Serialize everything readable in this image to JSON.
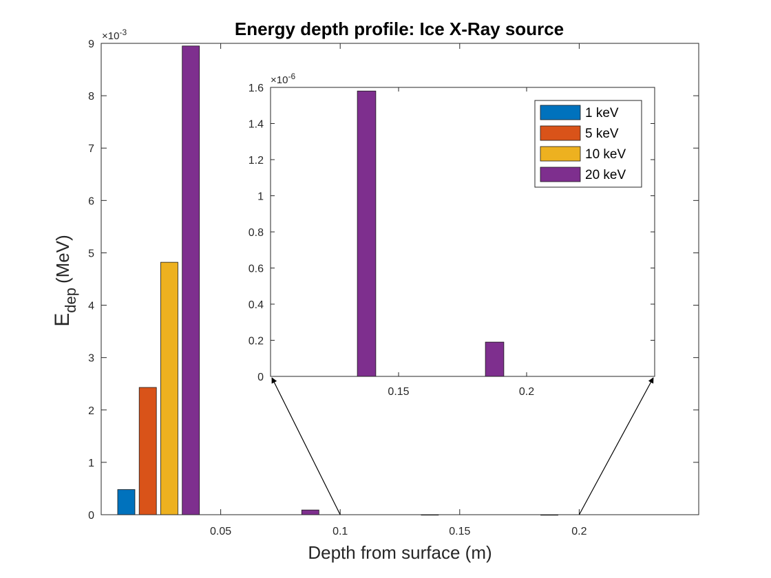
{
  "chart_data": [
    {
      "type": "bar",
      "title": "Energy depth profile: Ice X-Ray source",
      "xlabel": "Depth from surface (m)",
      "ylabel_main": "E",
      "ylabel_sub": "dep",
      "ylabel_unit": "(MeV)",
      "y_exponent_base": "×10",
      "y_exponent_power": "-3",
      "xlim": [
        0,
        0.25
      ],
      "ylim": [
        0,
        9
      ],
      "xticks": [
        0.05,
        0.1,
        0.15,
        0.2
      ],
      "xtick_labels": [
        "0.05",
        "0.1",
        "0.15",
        "0.2"
      ],
      "yticks": [
        0,
        1,
        2,
        3,
        4,
        5,
        6,
        7,
        8,
        9
      ],
      "ytick_labels": [
        "0",
        "1",
        "2",
        "3",
        "4",
        "5",
        "6",
        "7",
        "8",
        "9"
      ],
      "bar_width_m": 0.0072,
      "grid": false,
      "series": [
        {
          "name": "1 keV",
          "color": "#0072BD",
          "points": [
            {
              "x": 0.0105,
              "y": 0.48
            }
          ]
        },
        {
          "name": "5 keV",
          "color": "#D95319",
          "points": [
            {
              "x": 0.0195,
              "y": 2.43
            }
          ]
        },
        {
          "name": "10 keV",
          "color": "#EDB120",
          "points": [
            {
              "x": 0.0285,
              "y": 4.82
            }
          ]
        },
        {
          "name": "20 keV",
          "color": "#7E2F8E",
          "points": [
            {
              "x": 0.0375,
              "y": 8.95
            },
            {
              "x": 0.0875,
              "y": 0.09
            },
            {
              "x": 0.1375,
              "y": 0.0016
            },
            {
              "x": 0.1875,
              "y": 0.0002
            }
          ]
        }
      ]
    },
    {
      "type": "bar",
      "role": "inset",
      "xlim": [
        0.1,
        0.25
      ],
      "ylim": [
        0,
        1.6
      ],
      "xticks": [
        0.15,
        0.2
      ],
      "xtick_labels": [
        "0.15",
        "0.2"
      ],
      "yticks": [
        0,
        0.2,
        0.4,
        0.6,
        0.8,
        1,
        1.2,
        1.4,
        1.6
      ],
      "ytick_labels": [
        "0",
        "0.2",
        "0.4",
        "0.6",
        "0.8",
        "1",
        "1.2",
        "1.4",
        "1.6"
      ],
      "y_exponent_base": "×10",
      "y_exponent_power": "-6",
      "bar_width_m": 0.0072,
      "legend_position": "top-right",
      "legend": [
        "1 keV",
        "5 keV",
        "10 keV",
        "20 keV"
      ],
      "series": [
        {
          "name": "20 keV",
          "color": "#7E2F8E",
          "points": [
            {
              "x": 0.1375,
              "y": 1.58
            },
            {
              "x": 0.1875,
              "y": 0.19
            }
          ]
        }
      ],
      "zoom_source_x": [
        0.1,
        0.2
      ]
    }
  ]
}
